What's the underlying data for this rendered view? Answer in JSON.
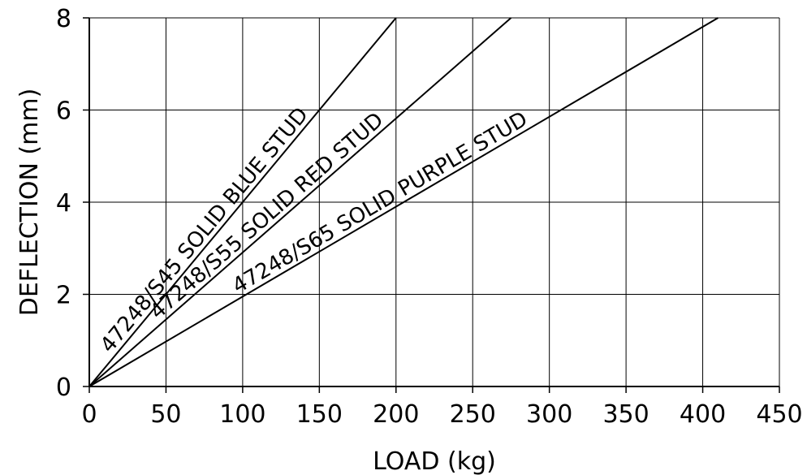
{
  "chart_data": {
    "type": "line",
    "title": "",
    "xlabel": "LOAD (kg)",
    "ylabel": "DEFLECTION (mm)",
    "xlim": [
      0,
      450
    ],
    "ylim": [
      0,
      8
    ],
    "xticks": [
      0,
      50,
      100,
      150,
      200,
      250,
      300,
      350,
      400,
      450
    ],
    "yticks": [
      0,
      2,
      4,
      6,
      8
    ],
    "grid": true,
    "legend": "inline-labels",
    "series": [
      {
        "name": "47248/S45 SOLID BLUE STUD",
        "x": [
          0,
          200
        ],
        "y": [
          0,
          8
        ]
      },
      {
        "name": "47248/S55 SOLID RED STUD",
        "x": [
          0,
          275
        ],
        "y": [
          0,
          8
        ]
      },
      {
        "name": "47248/S65 SOLID PURPLE STUD",
        "x": [
          0,
          410
        ],
        "y": [
          0,
          8
        ]
      }
    ]
  }
}
